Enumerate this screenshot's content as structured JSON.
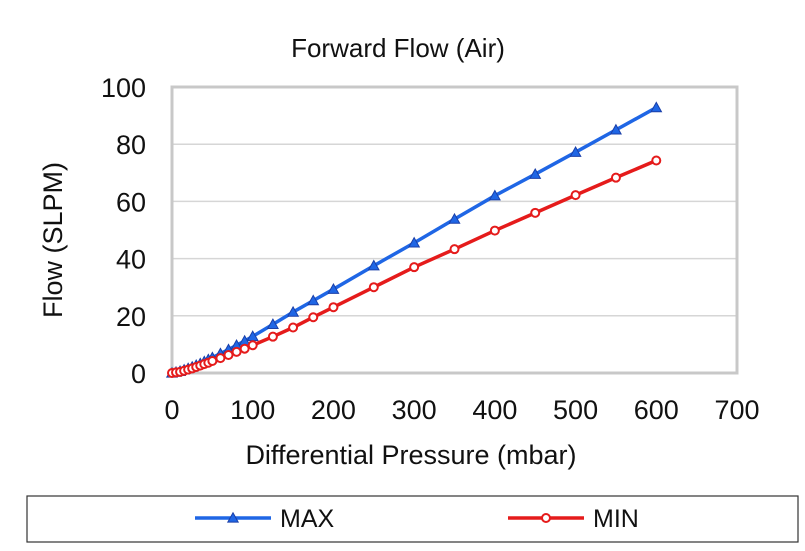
{
  "chart_data": {
    "type": "line",
    "title": "Forward Flow (Air)",
    "xlabel": "Differential Pressure (mbar)",
    "ylabel": "Flow (SLPM)",
    "xlim": [
      0,
      700
    ],
    "ylim": [
      0,
      100
    ],
    "xticks": [
      0,
      100,
      200,
      300,
      400,
      500,
      600,
      700
    ],
    "yticks": [
      0,
      20,
      40,
      60,
      80,
      100
    ],
    "grid": "horizontal",
    "legend_position": "bottom",
    "series": [
      {
        "name": "MAX",
        "color": "#1f66e5",
        "marker": "triangle",
        "x": [
          0,
          5,
          10,
          15,
          20,
          25,
          30,
          35,
          40,
          45,
          50,
          60,
          70,
          80,
          90,
          100,
          125,
          150,
          175,
          200,
          250,
          300,
          350,
          400,
          450,
          500,
          550,
          600
        ],
        "y": [
          0,
          0.3,
          0.6,
          1.1,
          1.6,
          2.1,
          2.7,
          3.3,
          4.0,
          4.7,
          5.4,
          6.8,
          8.2,
          9.7,
          11.2,
          12.8,
          17.0,
          21.3,
          25.3,
          29.3,
          37.5,
          45.5,
          53.8,
          62.0,
          69.5,
          77.2,
          85.0,
          92.8
        ]
      },
      {
        "name": "MIN",
        "color": "#e51b1b",
        "marker": "circle",
        "x": [
          0,
          5,
          10,
          15,
          20,
          25,
          30,
          35,
          40,
          45,
          50,
          60,
          70,
          80,
          90,
          100,
          125,
          150,
          175,
          200,
          250,
          300,
          350,
          400,
          450,
          500,
          550,
          600
        ],
        "y": [
          0,
          0.2,
          0.4,
          0.8,
          1.2,
          1.6,
          2.1,
          2.6,
          3.1,
          3.6,
          4.2,
          5.2,
          6.3,
          7.4,
          8.5,
          9.7,
          12.7,
          15.9,
          19.5,
          23.0,
          30.0,
          37.0,
          43.3,
          49.8,
          56.0,
          62.2,
          68.3,
          74.3
        ]
      }
    ]
  }
}
